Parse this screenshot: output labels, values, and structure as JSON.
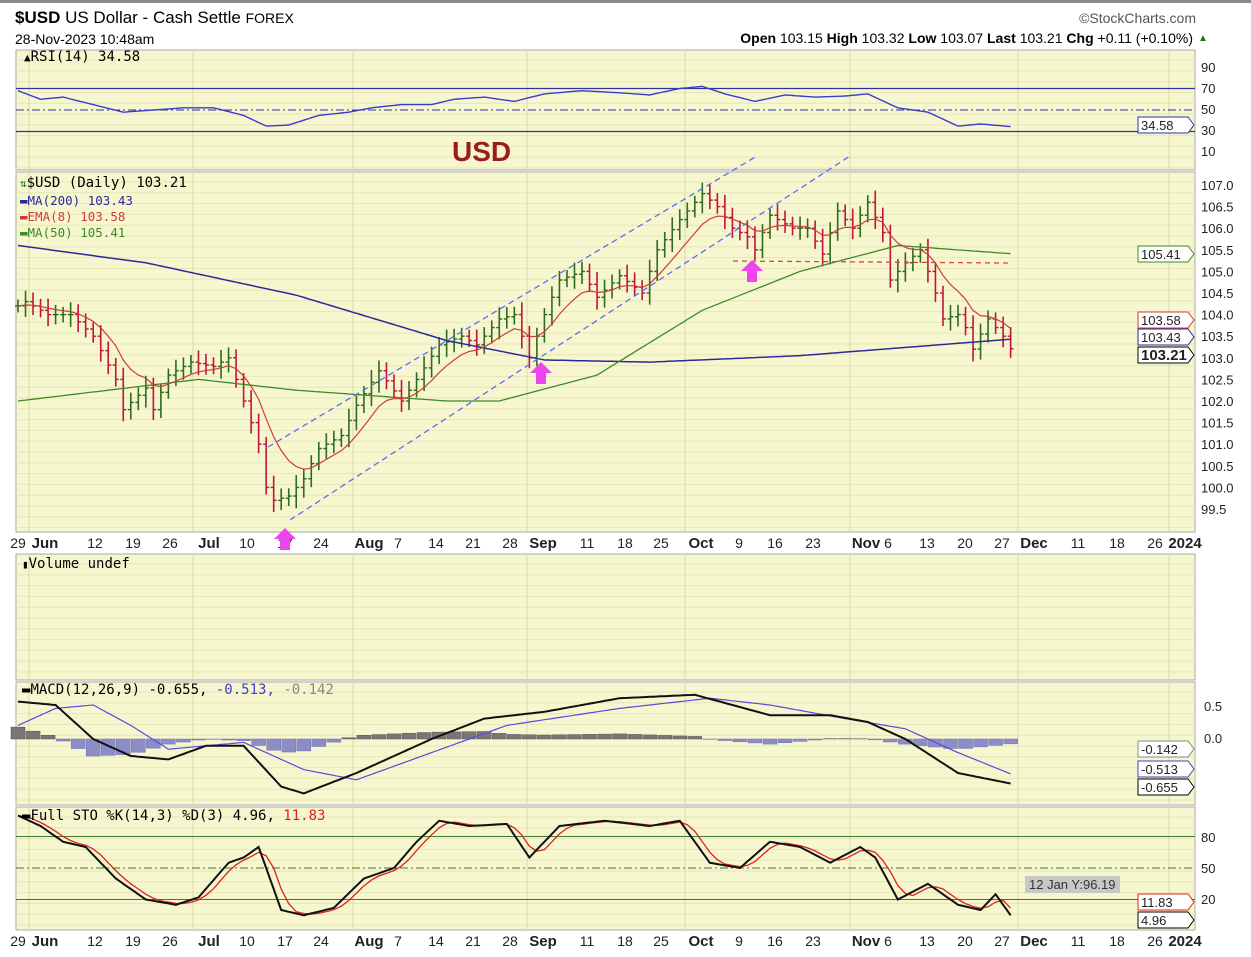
{
  "header": {
    "symbol": "$USD",
    "name": "US Dollar - Cash Settle",
    "exchange": "FOREX",
    "datetime": "28-Nov-2023 10:48am",
    "brand": "©StockCharts.com",
    "open_label": "Open",
    "open": "103.15",
    "high_label": "High",
    "high": "103.32",
    "low_label": "Low",
    "low": "103.07",
    "last_label": "Last",
    "last": "103.21",
    "chg_label": "Chg",
    "chg": "+0.11 (+0.10%)"
  },
  "annotation": "USD",
  "rsi": {
    "legend": "RSI(14) 34.58",
    "value_tag": "34.58",
    "ticks": [
      "90",
      "70",
      "50",
      "30",
      "10"
    ]
  },
  "price": {
    "legend": "$USD (Daily) 103.21",
    "ma200": "MA(200) 103.43",
    "ema8": "EMA(8) 103.58",
    "ma50": "MA(50) 105.41",
    "tags": {
      "ma50": "105.41",
      "ema8": "103.58",
      "ma200": "103.43",
      "last": "103.21"
    },
    "ticks": [
      "107.0",
      "106.5",
      "106.0",
      "105.5",
      "105.0",
      "104.5",
      "104.0",
      "103.5",
      "103.0",
      "102.5",
      "102.0",
      "101.5",
      "101.0",
      "100.5",
      "100.0",
      "99.5"
    ]
  },
  "volume": {
    "legend": "Volume undef"
  },
  "macd": {
    "legend_main": "MACD(12,26,9) -0.655,",
    "legend_signal": " -0.513,",
    "legend_hist": " -0.142",
    "ticks": [
      "0.5",
      "0.0"
    ],
    "tags": {
      "hist": "-0.142",
      "signal": "-0.513",
      "macd": "-0.655"
    }
  },
  "sto": {
    "legend_main": "Full STO %K(14,3) %D(3) 4.96,",
    "legend_d": " 11.83",
    "ticks": [
      "80",
      "50",
      "20"
    ],
    "tags": {
      "d": "11.83",
      "k": "4.96"
    }
  },
  "xaxis": [
    [
      "29",
      false
    ],
    [
      "Jun",
      true
    ],
    [
      "12",
      false
    ],
    [
      "19",
      false
    ],
    [
      "26",
      false
    ],
    [
      "Jul",
      true
    ],
    [
      "10",
      false
    ],
    [
      "17",
      false
    ],
    [
      "24",
      false
    ],
    [
      "Aug",
      true
    ],
    [
      "7",
      false
    ],
    [
      "14",
      false
    ],
    [
      "21",
      false
    ],
    [
      "28",
      false
    ],
    [
      "Sep",
      true
    ],
    [
      "11",
      false
    ],
    [
      "18",
      false
    ],
    [
      "25",
      false
    ],
    [
      "Oct",
      true
    ],
    [
      "9",
      false
    ],
    [
      "16",
      false
    ],
    [
      "23",
      false
    ],
    [
      "Nov",
      true
    ],
    [
      "6",
      false
    ],
    [
      "13",
      false
    ],
    [
      "20",
      false
    ],
    [
      "27",
      false
    ],
    [
      "Dec",
      true
    ],
    [
      "11",
      false
    ],
    [
      "18",
      false
    ],
    [
      "26",
      false
    ],
    [
      "2024",
      true
    ]
  ],
  "tooltip": "12 Jan Y:96.19",
  "colors": {
    "bg": "#f7f7cf",
    "up": "#2e6b1e",
    "down": "#c0143c",
    "ma200": "#2a2a9a",
    "ema8": "#d23a3a",
    "ma50": "#3d8a2a",
    "arrow": "#ee44ee"
  },
  "chart_data": {
    "type": "line",
    "title": "$USD US Dollar - Cash Settle FOREX (Daily)",
    "x_unit": "trading days since 29-May-2023",
    "close": [
      [
        0,
        104.2
      ],
      [
        1,
        104.3
      ],
      [
        4,
        104.0
      ],
      [
        7,
        104.0
      ],
      [
        10,
        103.5
      ],
      [
        13,
        102.5
      ],
      [
        14,
        101.8
      ],
      [
        17,
        102.3
      ],
      [
        18,
        101.8
      ],
      [
        20,
        102.6
      ],
      [
        23,
        102.9
      ],
      [
        26,
        102.8
      ],
      [
        28,
        103.0
      ],
      [
        30,
        102.0
      ],
      [
        32,
        101.0
      ],
      [
        33,
        100.0
      ],
      [
        34,
        99.7
      ],
      [
        36,
        99.8
      ],
      [
        38,
        100.2
      ],
      [
        40,
        100.9
      ],
      [
        43,
        101.2
      ],
      [
        45,
        101.9
      ],
      [
        48,
        102.7
      ],
      [
        51,
        102.0
      ],
      [
        53,
        102.5
      ],
      [
        56,
        103.3
      ],
      [
        59,
        103.5
      ],
      [
        61,
        103.3
      ],
      [
        64,
        103.9
      ],
      [
        66,
        104.0
      ],
      [
        68,
        103.0
      ],
      [
        70,
        104.0
      ],
      [
        72,
        104.8
      ],
      [
        75,
        105.0
      ],
      [
        77,
        104.4
      ],
      [
        80,
        104.9
      ],
      [
        83,
        104.5
      ],
      [
        85,
        105.5
      ],
      [
        88,
        106.2
      ],
      [
        91,
        106.8
      ],
      [
        93,
        106.5
      ],
      [
        95,
        106.0
      ],
      [
        97,
        105.8
      ],
      [
        98,
        105.5
      ],
      [
        100,
        106.3
      ],
      [
        103,
        106.0
      ],
      [
        105,
        106.0
      ],
      [
        107,
        105.4
      ],
      [
        109,
        106.4
      ],
      [
        111,
        106.0
      ],
      [
        113,
        106.6
      ],
      [
        115,
        105.9
      ],
      [
        116,
        104.8
      ],
      [
        118,
        105.2
      ],
      [
        120,
        105.5
      ],
      [
        122,
        104.5
      ],
      [
        123,
        103.9
      ],
      [
        125,
        104.0
      ],
      [
        126,
        103.7
      ],
      [
        127,
        103.2
      ],
      [
        129,
        103.9
      ],
      [
        131,
        103.5
      ],
      [
        132,
        103.21
      ]
    ],
    "ma200": [
      [
        0,
        105.6
      ],
      [
        17,
        105.2
      ],
      [
        37,
        104.45
      ],
      [
        57,
        103.4
      ],
      [
        70,
        102.95
      ],
      [
        84,
        102.9
      ],
      [
        104,
        103.05
      ],
      [
        132,
        103.43
      ]
    ],
    "ma50": [
      [
        0,
        102.0
      ],
      [
        24,
        102.5
      ],
      [
        37,
        102.25
      ],
      [
        57,
        102.0
      ],
      [
        64,
        102.0
      ],
      [
        77,
        102.6
      ],
      [
        91,
        104.1
      ],
      [
        104,
        105.0
      ],
      [
        117,
        105.6
      ],
      [
        132,
        105.41
      ]
    ],
    "rsi": [
      [
        0,
        68
      ],
      [
        3,
        60
      ],
      [
        6,
        62
      ],
      [
        10,
        55
      ],
      [
        14,
        48
      ],
      [
        18,
        50
      ],
      [
        22,
        52
      ],
      [
        26,
        52
      ],
      [
        30,
        45
      ],
      [
        33,
        35
      ],
      [
        36,
        36
      ],
      [
        40,
        45
      ],
      [
        44,
        48
      ],
      [
        47,
        52
      ],
      [
        51,
        55
      ],
      [
        55,
        55
      ],
      [
        58,
        60
      ],
      [
        62,
        62
      ],
      [
        66,
        58
      ],
      [
        70,
        65
      ],
      [
        75,
        68
      ],
      [
        80,
        66
      ],
      [
        84,
        64
      ],
      [
        88,
        70
      ],
      [
        91,
        72
      ],
      [
        94,
        65
      ],
      [
        98,
        58
      ],
      [
        102,
        64
      ],
      [
        106,
        62
      ],
      [
        110,
        63
      ],
      [
        113,
        65
      ],
      [
        117,
        52
      ],
      [
        121,
        48
      ],
      [
        125,
        35
      ],
      [
        128,
        37
      ],
      [
        132,
        34.58
      ]
    ],
    "macd": [
      [
        0,
        0.55
      ],
      [
        5,
        0.5
      ],
      [
        10,
        0.0
      ],
      [
        15,
        -0.25
      ],
      [
        20,
        -0.3
      ],
      [
        25,
        -0.1
      ],
      [
        30,
        -0.1
      ],
      [
        35,
        -0.7
      ],
      [
        38,
        -0.8
      ],
      [
        45,
        -0.5
      ],
      [
        55,
        0.0
      ],
      [
        62,
        0.3
      ],
      [
        70,
        0.4
      ],
      [
        80,
        0.6
      ],
      [
        90,
        0.65
      ],
      [
        95,
        0.5
      ],
      [
        100,
        0.35
      ],
      [
        108,
        0.35
      ],
      [
        113,
        0.25
      ],
      [
        118,
        0.0
      ],
      [
        125,
        -0.5
      ],
      [
        132,
        -0.655
      ]
    ],
    "signal": [
      [
        0,
        0.2
      ],
      [
        5,
        0.45
      ],
      [
        10,
        0.5
      ],
      [
        15,
        0.2
      ],
      [
        20,
        -0.15
      ],
      [
        30,
        -0.05
      ],
      [
        38,
        -0.45
      ],
      [
        45,
        -0.6
      ],
      [
        55,
        -0.2
      ],
      [
        65,
        0.2
      ],
      [
        80,
        0.45
      ],
      [
        92,
        0.6
      ],
      [
        100,
        0.5
      ],
      [
        110,
        0.3
      ],
      [
        118,
        0.15
      ],
      [
        125,
        -0.2
      ],
      [
        132,
        -0.513
      ]
    ],
    "sto_k": [
      [
        0,
        100
      ],
      [
        3,
        90
      ],
      [
        6,
        75
      ],
      [
        9,
        70
      ],
      [
        13,
        40
      ],
      [
        17,
        20
      ],
      [
        21,
        15
      ],
      [
        24,
        22
      ],
      [
        28,
        55
      ],
      [
        30,
        60
      ],
      [
        32,
        70
      ],
      [
        35,
        10
      ],
      [
        38,
        5
      ],
      [
        42,
        12
      ],
      [
        46,
        40
      ],
      [
        50,
        50
      ],
      [
        53,
        75
      ],
      [
        56,
        95
      ],
      [
        60,
        90
      ],
      [
        65,
        92
      ],
      [
        68,
        60
      ],
      [
        72,
        90
      ],
      [
        78,
        95
      ],
      [
        84,
        90
      ],
      [
        88,
        95
      ],
      [
        92,
        55
      ],
      [
        96,
        50
      ],
      [
        100,
        75
      ],
      [
        104,
        70
      ],
      [
        108,
        55
      ],
      [
        112,
        70
      ],
      [
        114,
        60
      ],
      [
        117,
        20
      ],
      [
        121,
        35
      ],
      [
        125,
        15
      ],
      [
        128,
        10
      ],
      [
        130,
        25
      ],
      [
        132,
        4.96
      ]
    ],
    "ylim_price": [
      99.5,
      107.0
    ],
    "ylim_rsi": [
      0,
      100
    ],
    "ylim_sto": [
      0,
      100
    ]
  }
}
